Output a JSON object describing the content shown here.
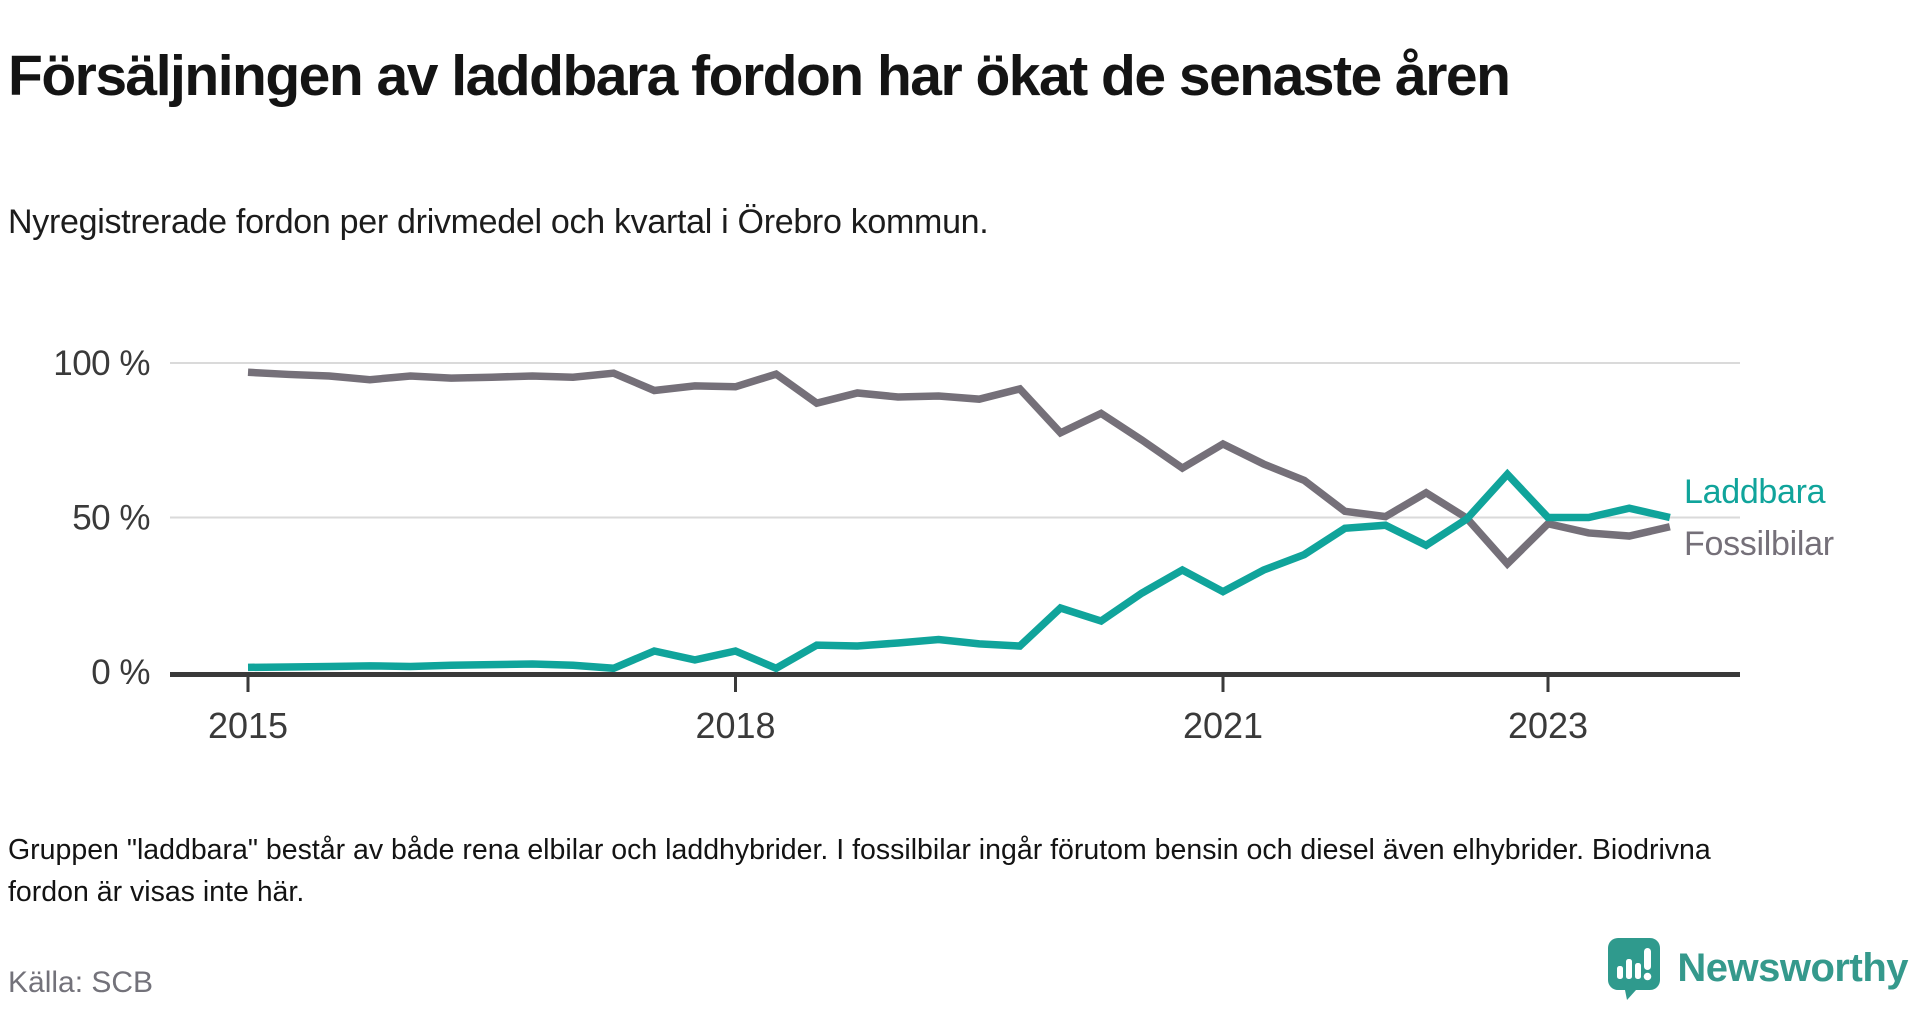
{
  "header": {
    "title": "Försäljningen av laddbara fordon har ökat de senaste åren",
    "subtitle": "Nyregistrerade fordon per drivmedel och kvartal i Örebro kommun."
  },
  "chart_data": {
    "type": "line",
    "title": "Försäljningen av laddbara fordon har ökat de senaste åren",
    "subtitle": "Nyregistrerade fordon per drivmedel och kvartal i Örebro kommun.",
    "x": [
      "2015 Q1",
      "2015 Q2",
      "2015 Q3",
      "2015 Q4",
      "2016 Q1",
      "2016 Q2",
      "2016 Q3",
      "2016 Q4",
      "2017 Q1",
      "2017 Q2",
      "2017 Q3",
      "2017 Q4",
      "2018 Q1",
      "2018 Q2",
      "2018 Q3",
      "2018 Q4",
      "2019 Q1",
      "2019 Q2",
      "2019 Q3",
      "2019 Q4",
      "2020 Q1",
      "2020 Q2",
      "2020 Q3",
      "2020 Q4",
      "2021 Q1",
      "2021 Q2",
      "2021 Q3",
      "2021 Q4",
      "2022 Q1",
      "2022 Q2",
      "2022 Q3",
      "2022 Q4",
      "2023 Q1",
      "2023 Q2",
      "2023 Q3",
      "2023 Q4"
    ],
    "series": [
      {
        "name": "Laddbara",
        "color": "#10a49b",
        "values": [
          1.5,
          1.6,
          1.8,
          2.0,
          1.8,
          2.2,
          2.4,
          2.6,
          2.2,
          1.2,
          6.8,
          3.9,
          6.8,
          1.2,
          8.7,
          8.4,
          9.4,
          10.5,
          9.1,
          8.4,
          20.7,
          16.5,
          25.5,
          33.0,
          26.0,
          33.0,
          38.0,
          46.5,
          47.5,
          41.0,
          49.5,
          64.0,
          50.0,
          50.0,
          53.0,
          50.0
        ]
      },
      {
        "name": "Fossilbilar",
        "color": "#757079",
        "values": [
          97.0,
          96.3,
          95.8,
          94.6,
          95.8,
          95.1,
          95.4,
          95.8,
          95.4,
          96.7,
          91.1,
          92.6,
          92.3,
          96.4,
          87.0,
          90.3,
          89.0,
          89.3,
          88.3,
          91.6,
          77.4,
          83.7,
          75.1,
          66.0,
          73.8,
          67.3,
          62.0,
          52.0,
          50.3,
          58.0,
          49.8,
          35.0,
          48.0,
          45.0,
          44.0,
          47.0
        ]
      }
    ],
    "unit": "%",
    "ylim": [
      0,
      100
    ],
    "y_ticks": [
      {
        "label": "100 %",
        "value": 100
      },
      {
        "label": "50 %",
        "value": 50
      },
      {
        "label": "0 %",
        "value": 0
      }
    ],
    "x_ticks": [
      {
        "label": "2015",
        "quarter_index": 0
      },
      {
        "label": "2018",
        "quarter_index": 12
      },
      {
        "label": "2021",
        "quarter_index": 24
      },
      {
        "label": "2023",
        "quarter_index": 32
      }
    ],
    "grid": "horizontal",
    "legend_position": "right-of-line-ends"
  },
  "footer": {
    "note": "Gruppen \"laddbara\" består av både rena elbilar och laddhybrider. I fossilbilar ingår förutom bensin och diesel även elhybrider. Biodrivna fordon är visas inte här.",
    "source": "Källa: SCB",
    "brand": "Newsworthy"
  },
  "colors": {
    "laddbara": "#10a49b",
    "fossilbilar": "#757079",
    "grid": "#dadada",
    "axis": "#3a3a3a",
    "tick_text": "#3a3a3a",
    "brand_teal": "#35998c"
  }
}
